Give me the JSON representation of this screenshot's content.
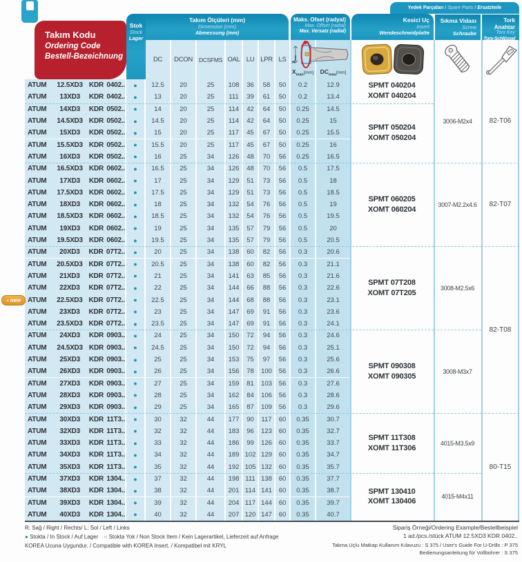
{
  "colors": {
    "header_blue": "#1d97c0",
    "red": "#b6212d",
    "row_blue": "#d2e8f2",
    "offset_blue": "#c2e1ee",
    "stock_dot": "#1d8fb5",
    "badge_orange": "#e9a83f",
    "insert_gold": "#d9a83c",
    "insert_black": "#53504c"
  },
  "icons": {
    "in_stock_dot": "●",
    "non_stock_dot": "○",
    "new_triangle": "▲",
    "bookmark": "bookmark-tab"
  },
  "header": {
    "code": {
      "l1": "Takım Kodu",
      "l2": "Ordering Code",
      "l3": "Bestell-Bezeichnung"
    },
    "stock": {
      "l1": "Stok",
      "l2": "Stock",
      "l3": "Lager"
    },
    "dimensions": {
      "l1": "Takım Ölçüleri (mm)",
      "l2": "Dimension (mm)",
      "l3": "Abmessung (mm)",
      "cols": [
        "DC",
        "DCON",
        "DCSFMS",
        "OAL",
        "LU",
        "LPR",
        "LS"
      ]
    },
    "offset": {
      "l1": "Maks. Ofset (radyal)",
      "l2": "Max. Offset (radial)",
      "l3": "Max. Versatz (radial)",
      "x_base": "X",
      "dc_base": "DC",
      "sub": "max",
      "unit": "[mm]"
    },
    "insert": {
      "l1": "Kesici Uç",
      "l2": "Insert",
      "l3": "Wendeschneidplatte"
    },
    "spare_banner": {
      "p1": "Yedek Parçaları",
      "sep": "/",
      "p2": "Spare Parts",
      "p3": "Ersatzteile"
    },
    "screw": {
      "l1": "Sıkma Vidası",
      "l2": "Screw",
      "l3": "Schraube"
    },
    "torx": {
      "l1": "Tork Anahtar",
      "l2": "Torx Key",
      "l3": "Torx-Schlüssel"
    }
  },
  "table": {
    "rows": [
      {
        "code": [
          "ATUM",
          "12.5XD3",
          "KDR",
          "0402.."
        ],
        "stock": "in",
        "dims": [
          "12.5",
          "20",
          "25",
          "108",
          "36",
          "58",
          "50"
        ],
        "xmax": "0.2",
        "dcmax": "12.9"
      },
      {
        "code": [
          "ATUM",
          "13XD3",
          "KDR",
          "0402.."
        ],
        "stock": "in",
        "dims": [
          "13",
          "20",
          "25",
          "111",
          "39",
          "61",
          "50"
        ],
        "xmax": "0.2",
        "dcmax": "13.4"
      },
      {
        "code": [
          "ATUM",
          "14XD3",
          "KDR",
          "0502.."
        ],
        "stock": "in",
        "dims": [
          "14",
          "20",
          "25",
          "114",
          "42",
          "64",
          "50"
        ],
        "xmax": "0.25",
        "dcmax": "14.5"
      },
      {
        "code": [
          "ATUM",
          "14.5XD3",
          "KDR",
          "0502.."
        ],
        "stock": "in",
        "dims": [
          "14.5",
          "20",
          "25",
          "114",
          "42",
          "64",
          "50"
        ],
        "xmax": "0.25",
        "dcmax": "15"
      },
      {
        "code": [
          "ATUM",
          "15XD3",
          "KDR",
          "0502.."
        ],
        "stock": "in",
        "dims": [
          "15",
          "20",
          "25",
          "117",
          "45",
          "67",
          "50"
        ],
        "xmax": "0.25",
        "dcmax": "15.5"
      },
      {
        "code": [
          "ATUM",
          "15.5XD3",
          "KDR",
          "0502.."
        ],
        "stock": "in",
        "dims": [
          "15.5",
          "20",
          "25",
          "117",
          "45",
          "67",
          "50"
        ],
        "xmax": "0.25",
        "dcmax": "16"
      },
      {
        "code": [
          "ATUM",
          "16XD3",
          "KDR",
          "0502.."
        ],
        "stock": "in",
        "dims": [
          "16",
          "25",
          "34",
          "126",
          "48",
          "70",
          "56"
        ],
        "xmax": "0.25",
        "dcmax": "16.5"
      },
      {
        "code": [
          "ATUM",
          "16.5XD3",
          "KDR",
          "0602.."
        ],
        "stock": "in",
        "dims": [
          "16.5",
          "25",
          "34",
          "126",
          "48",
          "70",
          "56"
        ],
        "xmax": "0.5",
        "dcmax": "17.5"
      },
      {
        "code": [
          "ATUM",
          "17XD3",
          "KDR",
          "0602.."
        ],
        "stock": "in",
        "dims": [
          "17",
          "25",
          "34",
          "129",
          "51",
          "73",
          "56"
        ],
        "xmax": "0.5",
        "dcmax": "18"
      },
      {
        "code": [
          "ATUM",
          "17.5XD3",
          "KDR",
          "0602.."
        ],
        "stock": "in",
        "dims": [
          "17.5",
          "25",
          "34",
          "129",
          "51",
          "73",
          "56"
        ],
        "xmax": "0.5",
        "dcmax": "18.5"
      },
      {
        "code": [
          "ATUM",
          "18XD3",
          "KDR",
          "0602.."
        ],
        "stock": "in",
        "dims": [
          "18",
          "25",
          "34",
          "132",
          "54",
          "76",
          "56"
        ],
        "xmax": "0.5",
        "dcmax": "19"
      },
      {
        "code": [
          "ATUM",
          "18.5XD3",
          "KDR",
          "0602.."
        ],
        "stock": "in",
        "dims": [
          "18.5",
          "25",
          "34",
          "132",
          "54",
          "76",
          "56"
        ],
        "xmax": "0.5",
        "dcmax": "19.5"
      },
      {
        "code": [
          "ATUM",
          "19XD3",
          "KDR",
          "0602.."
        ],
        "stock": "in",
        "dims": [
          "19",
          "25",
          "34",
          "135",
          "57",
          "79",
          "56"
        ],
        "xmax": "0.5",
        "dcmax": "20"
      },
      {
        "code": [
          "ATUM",
          "19.5XD3",
          "KDR",
          "0602.."
        ],
        "stock": "in",
        "dims": [
          "19.5",
          "25",
          "34",
          "135",
          "57",
          "79",
          "56"
        ],
        "xmax": "0.5",
        "dcmax": "20.5"
      },
      {
        "code": [
          "ATUM",
          "20XD3",
          "KDR",
          "07T2.."
        ],
        "stock": "in",
        "dims": [
          "20",
          "25",
          "34",
          "138",
          "60",
          "82",
          "56"
        ],
        "xmax": "0.3",
        "dcmax": "20.6"
      },
      {
        "code": [
          "ATUM",
          "20.5XD3",
          "KDR",
          "07T2.."
        ],
        "stock": "in",
        "dims": [
          "20.5",
          "25",
          "34",
          "138",
          "60",
          "82",
          "56"
        ],
        "xmax": "0.3",
        "dcmax": "21.1"
      },
      {
        "code": [
          "ATUM",
          "21XD3",
          "KDR",
          "07T2.."
        ],
        "stock": "in",
        "dims": [
          "21",
          "25",
          "34",
          "141",
          "63",
          "85",
          "56"
        ],
        "xmax": "0.3",
        "dcmax": "21.6"
      },
      {
        "code": [
          "ATUM",
          "22XD3",
          "KDR",
          "07T2.."
        ],
        "stock": "in",
        "dims": [
          "22",
          "25",
          "34",
          "144",
          "66",
          "88",
          "56"
        ],
        "xmax": "0.3",
        "dcmax": "22.6"
      },
      {
        "code": [
          "ATUM",
          "22.5XD3",
          "KDR",
          "07T2.."
        ],
        "stock": "in",
        "new": true,
        "dims": [
          "22.5",
          "25",
          "34",
          "144",
          "68",
          "88",
          "56"
        ],
        "xmax": "0.3",
        "dcmax": "23.1"
      },
      {
        "code": [
          "ATUM",
          "23XD3",
          "KDR",
          "07T2.."
        ],
        "stock": "in",
        "dims": [
          "23",
          "25",
          "34",
          "147",
          "69",
          "91",
          "56"
        ],
        "xmax": "0.3",
        "dcmax": "23.6"
      },
      {
        "code": [
          "ATUM",
          "23.5XD3",
          "KDR",
          "07T2.."
        ],
        "stock": "in",
        "dims": [
          "23.5",
          "25",
          "34",
          "147",
          "69",
          "91",
          "56"
        ],
        "xmax": "0.3",
        "dcmax": "24.1"
      },
      {
        "code": [
          "ATUM",
          "24XD3",
          "KDR",
          "0903.."
        ],
        "stock": "in",
        "dims": [
          "24",
          "25",
          "34",
          "150",
          "72",
          "94",
          "56"
        ],
        "xmax": "0.3",
        "dcmax": "24.6"
      },
      {
        "code": [
          "ATUM",
          "24.5XD3",
          "KDR",
          "0903.."
        ],
        "stock": "in",
        "dims": [
          "24.5",
          "25",
          "34",
          "150",
          "72",
          "94",
          "56"
        ],
        "xmax": "0.3",
        "dcmax": "25.1"
      },
      {
        "code": [
          "ATUM",
          "25XD3",
          "KDR",
          "0903.."
        ],
        "stock": "in",
        "dims": [
          "25",
          "25",
          "34",
          "153",
          "75",
          "97",
          "56"
        ],
        "xmax": "0.3",
        "dcmax": "25.6"
      },
      {
        "code": [
          "ATUM",
          "26XD3",
          "KDR",
          "0903.."
        ],
        "stock": "in",
        "dims": [
          "26",
          "25",
          "34",
          "156",
          "78",
          "100",
          "56"
        ],
        "xmax": "0.3",
        "dcmax": "26.6"
      },
      {
        "code": [
          "ATUM",
          "27XD3",
          "KDR",
          "0903.."
        ],
        "stock": "in",
        "dims": [
          "27",
          "25",
          "34",
          "159",
          "81",
          "103",
          "56"
        ],
        "xmax": "0.3",
        "dcmax": "27.6"
      },
      {
        "code": [
          "ATUM",
          "28XD3",
          "KDR",
          "0903.."
        ],
        "stock": "in",
        "dims": [
          "28",
          "25",
          "34",
          "162",
          "84",
          "106",
          "56"
        ],
        "xmax": "0.3",
        "dcmax": "28.6"
      },
      {
        "code": [
          "ATUM",
          "29XD3",
          "KDR",
          "0903.."
        ],
        "stock": "in",
        "dims": [
          "29",
          "25",
          "34",
          "165",
          "87",
          "109",
          "56"
        ],
        "xmax": "0.3",
        "dcmax": "29.6"
      },
      {
        "code": [
          "ATUM",
          "30XD3",
          "KDR",
          "11T3.."
        ],
        "stock": "in",
        "dims": [
          "30",
          "32",
          "44",
          "177",
          "90",
          "117",
          "60"
        ],
        "xmax": "0.35",
        "dcmax": "30.7"
      },
      {
        "code": [
          "ATUM",
          "32XD3",
          "KDR",
          "11T3.."
        ],
        "stock": "in",
        "dims": [
          "32",
          "32",
          "44",
          "183",
          "96",
          "123",
          "60"
        ],
        "xmax": "0.35",
        "dcmax": "32.7"
      },
      {
        "code": [
          "ATUM",
          "33XD3",
          "KDR",
          "11T3.."
        ],
        "stock": "in",
        "dims": [
          "33",
          "32",
          "44",
          "186",
          "99",
          "126",
          "60"
        ],
        "xmax": "0.35",
        "dcmax": "33.7"
      },
      {
        "code": [
          "ATUM",
          "34XD3",
          "KDR",
          "11T3.."
        ],
        "stock": "in",
        "dims": [
          "34",
          "32",
          "44",
          "189",
          "102",
          "129",
          "60"
        ],
        "xmax": "0.35",
        "dcmax": "34.7"
      },
      {
        "code": [
          "ATUM",
          "35XD3",
          "KDR",
          "11T3.."
        ],
        "stock": "in",
        "dims": [
          "35",
          "32",
          "44",
          "192",
          "105",
          "132",
          "60"
        ],
        "xmax": "0.35",
        "dcmax": "35.7"
      },
      {
        "code": [
          "ATUM",
          "37XD3",
          "KDR",
          "1304.."
        ],
        "stock": "in",
        "dims": [
          "37",
          "32",
          "44",
          "198",
          "111",
          "138",
          "60"
        ],
        "xmax": "0.35",
        "dcmax": "37.7"
      },
      {
        "code": [
          "ATUM",
          "38XD3",
          "KDR",
          "1304.."
        ],
        "stock": "in",
        "dims": [
          "38",
          "32",
          "44",
          "201",
          "114",
          "141",
          "60"
        ],
        "xmax": "0.35",
        "dcmax": "38.7"
      },
      {
        "code": [
          "ATUM",
          "39XD3",
          "KDR",
          "1304.."
        ],
        "stock": "in",
        "dims": [
          "39",
          "32",
          "44",
          "204",
          "117",
          "144",
          "60"
        ],
        "xmax": "0.35",
        "dcmax": "39.7"
      },
      {
        "code": [
          "ATUM",
          "40XD3",
          "KDR",
          "1304.."
        ],
        "stock": "in",
        "dims": [
          "40",
          "32",
          "44",
          "207",
          "120",
          "147",
          "60"
        ],
        "xmax": "0.35",
        "dcmax": "40.7"
      }
    ],
    "insert_groups": [
      {
        "start": 0,
        "end": 1,
        "lines": [
          "SPMT 040204",
          "XOMT 040204"
        ]
      },
      {
        "start": 2,
        "end": 6,
        "lines": [
          "SPMT 050204",
          "XOMT 050204"
        ]
      },
      {
        "start": 7,
        "end": 13,
        "lines": [
          "SPMT 060205",
          "XOMT 060204"
        ]
      },
      {
        "start": 14,
        "end": 20,
        "lines": [
          "SPMT 07T208",
          "XOMT 07T205"
        ]
      },
      {
        "start": 21,
        "end": 27,
        "lines": [
          "SPMT 090308",
          "XOMT 090305"
        ]
      },
      {
        "start": 28,
        "end": 32,
        "lines": [
          "SPMT 11T308",
          "XOMT 11T306"
        ]
      },
      {
        "start": 33,
        "end": 36,
        "lines": [
          "SPMT 130410",
          "XOMT 130406"
        ]
      }
    ],
    "screw_groups": [
      {
        "start": 0,
        "end": 6,
        "label": "3006-M2x4"
      },
      {
        "start": 7,
        "end": 13,
        "label": "3007-M2.2x4.6"
      },
      {
        "start": 14,
        "end": 20,
        "label": "3008-M2.5x6"
      },
      {
        "start": 21,
        "end": 27,
        "label": "3008-M3x7"
      },
      {
        "start": 28,
        "end": 32,
        "label": "4015-M3.5x9"
      },
      {
        "start": 33,
        "end": 36,
        "label": "4015-M4x11"
      }
    ],
    "torx_groups": [
      {
        "start": 0,
        "end": 6,
        "label": "82-T06"
      },
      {
        "start": 7,
        "end": 13,
        "label": "82-T07"
      },
      {
        "start": 14,
        "end": 27,
        "label": "82-T08"
      },
      {
        "start": 28,
        "end": 36,
        "label": "80-T15"
      }
    ]
  },
  "badge": {
    "label": "new"
  },
  "footer": {
    "left1": "R: Sağ / Right / Rechts/   L: Sol / Left / Links",
    "stock_in": "Stokta / In Stock / Auf Lager",
    "stock_out": "Stokta Yok / Non Stock Item / Kein Lagerartikel, Lieferzeit auf Anfrage",
    "left3": "KOREA Ucuna Uygundur. / Compatible with KOREA Insert. / Kompatibel mit KRYL",
    "right1": "Sipariş Örneği/Ordering Example/Bestellbeispiel",
    "right2": "1 ad./pcs./stück  ATUM 12.5XD3 KDR 0402..",
    "right3": "Takma Uçlu Matkap Kullanım Kılavuzu : S 375 / User's Guide For U-Drills : P 375",
    "right4": "Bedienungsanleitung für Vollbohrer : S 375"
  }
}
